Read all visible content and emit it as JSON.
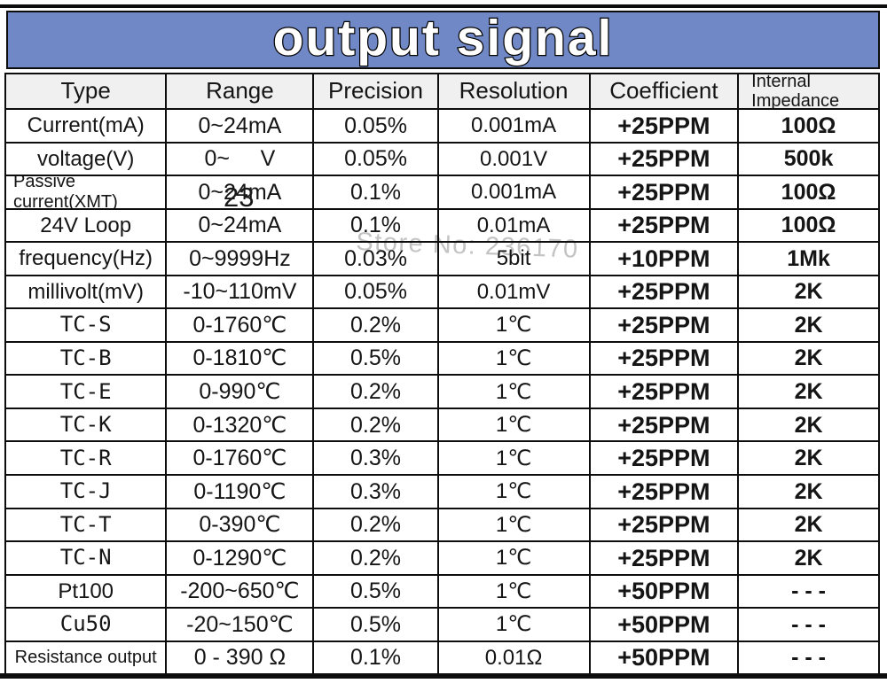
{
  "banner": {
    "title": "output signal",
    "bg_color": "#7089c6"
  },
  "watermark": {
    "text": "Store No: 236170",
    "color": "#b5b5b5"
  },
  "stray_overlay": {
    "text": "23"
  },
  "table": {
    "headers": [
      "Type",
      "Range",
      "Precision",
      "Resolution",
      "Coefficient",
      "Internal Impedance"
    ],
    "rows": [
      {
        "type": "Current(mA)",
        "range": "0~24mA",
        "precision": "0.05%",
        "resolution": "0.001mA",
        "coefficient": "+25PPM",
        "impedance": "100Ω"
      },
      {
        "type": "voltage(V)",
        "range": "0~     V",
        "precision": "0.05%",
        "resolution": "0.001V",
        "coefficient": "+25PPM",
        "impedance": "500k"
      },
      {
        "type": "Passive\ncurrent(XMT)",
        "range": "0~24mA",
        "precision": "0.1%",
        "resolution": "0.001mA",
        "coefficient": "+25PPM",
        "impedance": "100Ω"
      },
      {
        "type": "24V Loop",
        "range": "0~24mA",
        "precision": "0.1%",
        "resolution": "0.01mA",
        "coefficient": "+25PPM",
        "impedance": "100Ω"
      },
      {
        "type": "frequency(Hz)",
        "range": "0~9999Hz",
        "precision": "0.03%",
        "resolution": "5bit",
        "coefficient": "+10PPM",
        "impedance": "1Mk"
      },
      {
        "type": "millivolt(mV)",
        "range": "-10~110mV",
        "precision": "0.05%",
        "resolution": "0.01mV",
        "coefficient": "+25PPM",
        "impedance": "2K"
      },
      {
        "type": "TC-S",
        "range": "0-1760℃",
        "precision": "0.2%",
        "resolution": "1℃",
        "coefficient": "+25PPM",
        "impedance": "2K"
      },
      {
        "type": "TC-B",
        "range": "0-1810℃",
        "precision": "0.5%",
        "resolution": "1℃",
        "coefficient": "+25PPM",
        "impedance": "2K"
      },
      {
        "type": "TC-E",
        "range": "0-990℃",
        "precision": "0.2%",
        "resolution": "1℃",
        "coefficient": "+25PPM",
        "impedance": "2K"
      },
      {
        "type": "TC-K",
        "range": "0-1320℃",
        "precision": "0.2%",
        "resolution": "1℃",
        "coefficient": "+25PPM",
        "impedance": "2K"
      },
      {
        "type": "TC-R",
        "range": "0-1760℃",
        "precision": "0.3%",
        "resolution": "1℃",
        "coefficient": "+25PPM",
        "impedance": "2K"
      },
      {
        "type": "TC-J",
        "range": "0-1190℃",
        "precision": "0.3%",
        "resolution": "1℃",
        "coefficient": "+25PPM",
        "impedance": "2K"
      },
      {
        "type": "TC-T",
        "range": "0-390℃",
        "precision": "0.2%",
        "resolution": "1℃",
        "coefficient": "+25PPM",
        "impedance": "2K"
      },
      {
        "type": "TC-N",
        "range": "0-1290℃",
        "precision": "0.2%",
        "resolution": "1℃",
        "coefficient": "+25PPM",
        "impedance": "2K"
      },
      {
        "type": "Pt100",
        "range": "-200~650℃",
        "precision": "0.5%",
        "resolution": "1℃",
        "coefficient": "+50PPM",
        "impedance": "- - -"
      },
      {
        "type": "Cu50",
        "range": "-20~150℃",
        "precision": "0.5%",
        "resolution": "1℃",
        "coefficient": "+50PPM",
        "impedance": "- - -"
      },
      {
        "type": "Resistance output",
        "range": "0 - 390 Ω",
        "precision": "0.1%",
        "resolution": "0.01Ω",
        "coefficient": "+50PPM",
        "impedance": "- - -"
      }
    ]
  }
}
